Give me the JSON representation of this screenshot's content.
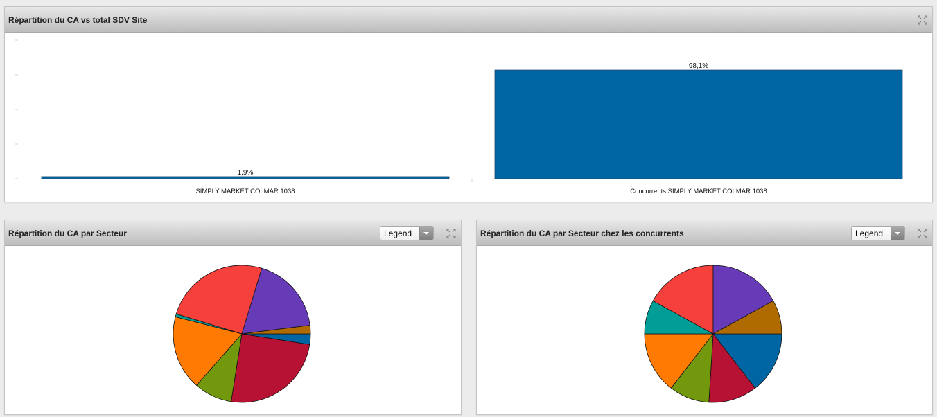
{
  "panels": {
    "top": {
      "title": "Répartition du CA vs total SDV Site"
    },
    "bottom_left": {
      "title": "Répartition du CA par Secteur",
      "legend_select": "Legend"
    },
    "bottom_right": {
      "title": "Répartition du CA par Secteur chez les concurrents",
      "legend_select": "Legend"
    }
  },
  "chart_data": [
    {
      "type": "bar",
      "categories": [
        "SIMPLY MARKET COLMAR 1038",
        "Concurrents SIMPLY MARKET COLMAR 1038"
      ],
      "values": [
        1.9,
        98.1
      ],
      "data_labels": [
        "1,9%",
        "98,1%"
      ],
      "ylim": [
        0,
        100
      ],
      "color": "#0066a3",
      "grid": false
    },
    {
      "type": "pie",
      "slices": [
        {
          "value": 2.5,
          "color": "#0066a3"
        },
        {
          "value": 25.0,
          "color": "#b71233"
        },
        {
          "value": 9.0,
          "color": "#72980d"
        },
        {
          "value": 17.5,
          "color": "#ff7a00"
        },
        {
          "value": 0.7,
          "color": "#009e96"
        },
        {
          "value": 25.0,
          "color": "#f6403c"
        },
        {
          "value": 18.3,
          "color": "#673bb8"
        },
        {
          "value": 2.0,
          "color": "#b06b00"
        }
      ]
    },
    {
      "type": "pie",
      "slices": [
        {
          "value": 14.5,
          "color": "#0066a3"
        },
        {
          "value": 11.5,
          "color": "#b71233"
        },
        {
          "value": 9.5,
          "color": "#72980d"
        },
        {
          "value": 14.5,
          "color": "#ff7a00"
        },
        {
          "value": 8.0,
          "color": "#009e96"
        },
        {
          "value": 17.0,
          "color": "#f6403c"
        },
        {
          "value": 17.0,
          "color": "#673bb8"
        },
        {
          "value": 8.0,
          "color": "#b06b00"
        }
      ]
    }
  ]
}
